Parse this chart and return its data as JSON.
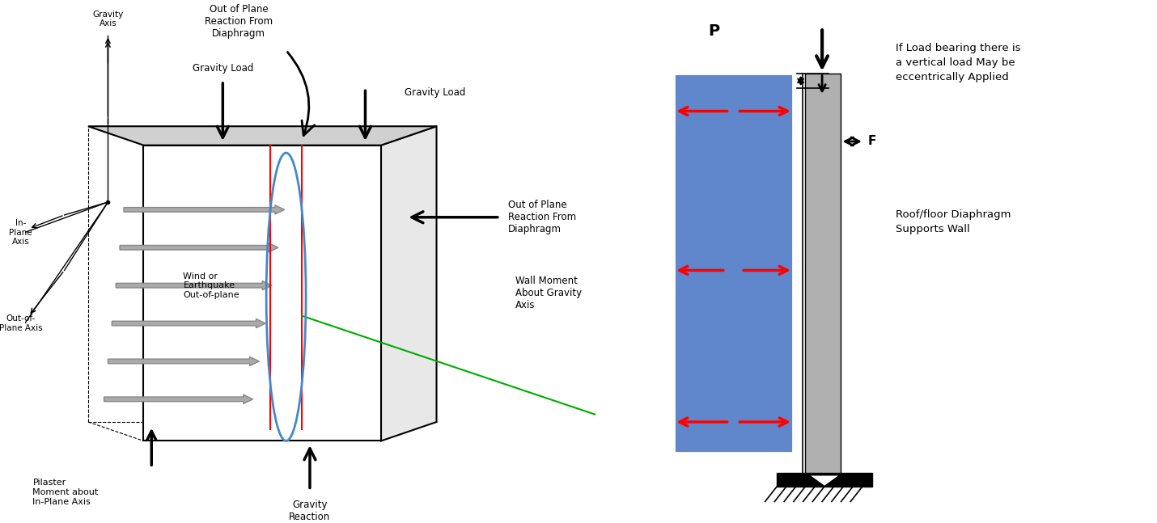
{
  "fig_width": 14.3,
  "fig_height": 6.47,
  "bg_color": "#ffffff",
  "left_labels": {
    "gravity_axis": "Gravity\nAxis",
    "in_plane_axis": "In-\nPlane\nAxis",
    "out_of_plane_axis": "Out-of-\nPlane Axis",
    "pilaster_moment": "Pilaster\nMoment about\nIn-Plane Axis",
    "wind_earthquake": "Wind or\nEarthquake\nOut-of-plane",
    "gravity_load_top": "Gravity Load",
    "out_plane_reaction_left": "Out of Plane\nReaction From\nDiaphragm",
    "gravity_load_right": "Gravity Load",
    "out_plane_reaction_right": "Out of Plane\nReaction From\nDiaphragm",
    "wall_moment": "Wall Moment\nAbout Gravity\nAxis",
    "gravity_reaction": "Gravity\nReaction"
  },
  "right_labels": {
    "P": "P",
    "F": "F",
    "if_load_bearing": "If Load bearing there is\na vertical load May be\neccentrically Applied",
    "roof_floor": "Roof/floor Diaphragm\nSupports Wall"
  },
  "blue_color": "#4472C4",
  "gray_color": "#808080",
  "red_color": "#FF0000",
  "black_color": "#000000",
  "green_color": "#00AA00",
  "arrow_gray": "#AAAAAA"
}
